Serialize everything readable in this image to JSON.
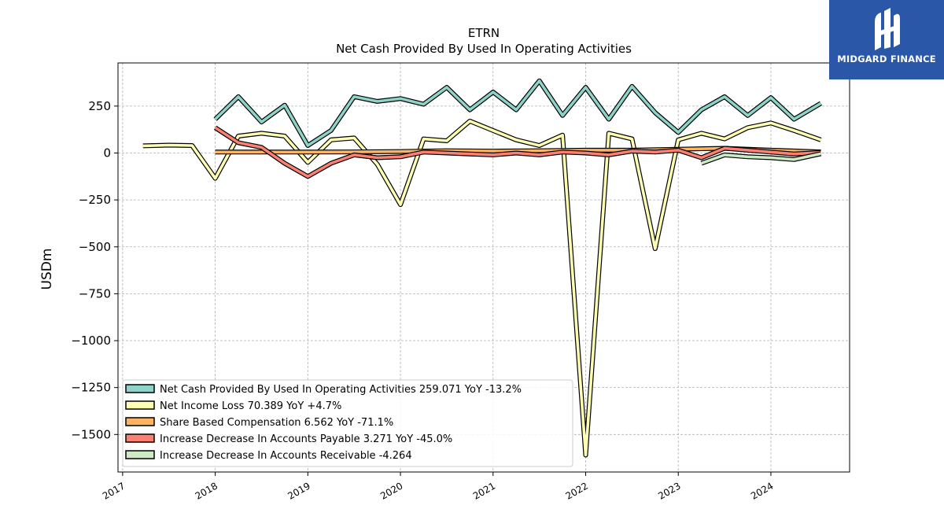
{
  "brand": {
    "name": "MIDGARD FINANCE",
    "bg_color": "#2b57a8"
  },
  "chart_data": {
    "type": "line",
    "title": "ETRN",
    "subtitle": "Net Cash Provided By Used In Operating Activities",
    "xlabel": "",
    "ylabel": "USDm",
    "xlim": [
      2016.95,
      2024.85
    ],
    "ylim": [
      -1700,
      480
    ],
    "x_ticks": [
      "2017",
      "2018",
      "2019",
      "2020",
      "2021",
      "2022",
      "2023",
      "2024"
    ],
    "y_ticks": [
      250,
      0,
      -250,
      -500,
      -750,
      -1000,
      -1250,
      -1500
    ],
    "y_tick_labels": [
      "250",
      "0",
      "−250",
      "−500",
      "−750",
      "−1000",
      "−1250",
      "−1500"
    ],
    "grid": true,
    "legend_position": "lower-left",
    "series": [
      {
        "name": "Net Cash Provided By Used In Operating Activities",
        "legend": "Net Cash Provided By Used In Operating Activities  259.071 YoY -13.2%",
        "color": "#8dd3c7",
        "points": [
          [
            2018.0,
            180
          ],
          [
            2018.25,
            300
          ],
          [
            2018.5,
            165
          ],
          [
            2018.75,
            255
          ],
          [
            2019.0,
            40
          ],
          [
            2019.25,
            120
          ],
          [
            2019.5,
            300
          ],
          [
            2019.75,
            275
          ],
          [
            2020.0,
            290
          ],
          [
            2020.25,
            260
          ],
          [
            2020.5,
            350
          ],
          [
            2020.75,
            230
          ],
          [
            2021.0,
            325
          ],
          [
            2021.25,
            230
          ],
          [
            2021.5,
            385
          ],
          [
            2021.75,
            200
          ],
          [
            2022.0,
            350
          ],
          [
            2022.25,
            180
          ],
          [
            2022.5,
            355
          ],
          [
            2022.75,
            215
          ],
          [
            2023.0,
            110
          ],
          [
            2023.25,
            230
          ],
          [
            2023.5,
            300
          ],
          [
            2023.75,
            200
          ],
          [
            2024.0,
            295
          ],
          [
            2024.25,
            180
          ],
          [
            2024.54,
            265
          ]
        ]
      },
      {
        "name": "Net Income Loss",
        "legend": "Net Income Loss  70.389 YoY +4.7%",
        "color": "#ffffb3",
        "points": [
          [
            2017.22,
            38
          ],
          [
            2017.5,
            42
          ],
          [
            2017.75,
            40
          ],
          [
            2018.0,
            -135
          ],
          [
            2018.25,
            90
          ],
          [
            2018.5,
            105
          ],
          [
            2018.75,
            90
          ],
          [
            2019.0,
            -50
          ],
          [
            2019.25,
            70
          ],
          [
            2019.5,
            80
          ],
          [
            2019.75,
            -60
          ],
          [
            2020.0,
            -275
          ],
          [
            2020.25,
            75
          ],
          [
            2020.5,
            65
          ],
          [
            2020.75,
            170
          ],
          [
            2021.0,
            120
          ],
          [
            2021.25,
            70
          ],
          [
            2021.5,
            40
          ],
          [
            2021.75,
            95
          ],
          [
            2022.0,
            -1610
          ],
          [
            2022.25,
            105
          ],
          [
            2022.5,
            75
          ],
          [
            2022.75,
            -510
          ],
          [
            2023.0,
            70
          ],
          [
            2023.25,
            105
          ],
          [
            2023.5,
            75
          ],
          [
            2023.75,
            135
          ],
          [
            2024.0,
            160
          ],
          [
            2024.25,
            120
          ],
          [
            2024.54,
            70
          ]
        ]
      },
      {
        "name": "Share Based Compensation",
        "legend": "Share Based Compensation  6.562 YoY -71.1%",
        "color": "#fdb462",
        "points": [
          [
            2018.0,
            5
          ],
          [
            2018.5,
            5
          ],
          [
            2019.0,
            5
          ],
          [
            2019.5,
            6
          ],
          [
            2020.0,
            8
          ],
          [
            2020.5,
            12
          ],
          [
            2021.0,
            10
          ],
          [
            2021.5,
            12
          ],
          [
            2022.0,
            15
          ],
          [
            2022.5,
            15
          ],
          [
            2023.0,
            20
          ],
          [
            2023.5,
            25
          ],
          [
            2024.0,
            15
          ],
          [
            2024.54,
            6
          ]
        ]
      },
      {
        "name": "Increase Decrease In Accounts Payable",
        "legend": "Increase Decrease In Accounts Payable  3.271 YoY -45.0%",
        "color": "#fb8072",
        "points": [
          [
            2018.0,
            135
          ],
          [
            2018.25,
            55
          ],
          [
            2018.5,
            30
          ],
          [
            2018.75,
            -55
          ],
          [
            2019.0,
            -125
          ],
          [
            2019.25,
            -55
          ],
          [
            2019.5,
            -10
          ],
          [
            2019.75,
            -25
          ],
          [
            2020.0,
            -20
          ],
          [
            2020.25,
            5
          ],
          [
            2020.5,
            0
          ],
          [
            2020.75,
            -5
          ],
          [
            2021.0,
            -10
          ],
          [
            2021.25,
            0
          ],
          [
            2021.5,
            -10
          ],
          [
            2021.75,
            5
          ],
          [
            2022.0,
            0
          ],
          [
            2022.25,
            -10
          ],
          [
            2022.5,
            10
          ],
          [
            2022.75,
            5
          ],
          [
            2023.0,
            15
          ],
          [
            2023.25,
            -25
          ],
          [
            2023.5,
            25
          ],
          [
            2023.75,
            15
          ],
          [
            2024.0,
            5
          ],
          [
            2024.25,
            -5
          ],
          [
            2024.54,
            3
          ]
        ]
      },
      {
        "name": "Increase Decrease In Accounts Receivable",
        "legend": "Increase Decrease In Accounts Receivable  -4.264",
        "color": "#ccebc5",
        "points": [
          [
            2023.25,
            -55
          ],
          [
            2023.5,
            -10
          ],
          [
            2023.75,
            -20
          ],
          [
            2024.0,
            -25
          ],
          [
            2024.25,
            -35
          ],
          [
            2024.54,
            -4
          ]
        ]
      }
    ]
  }
}
